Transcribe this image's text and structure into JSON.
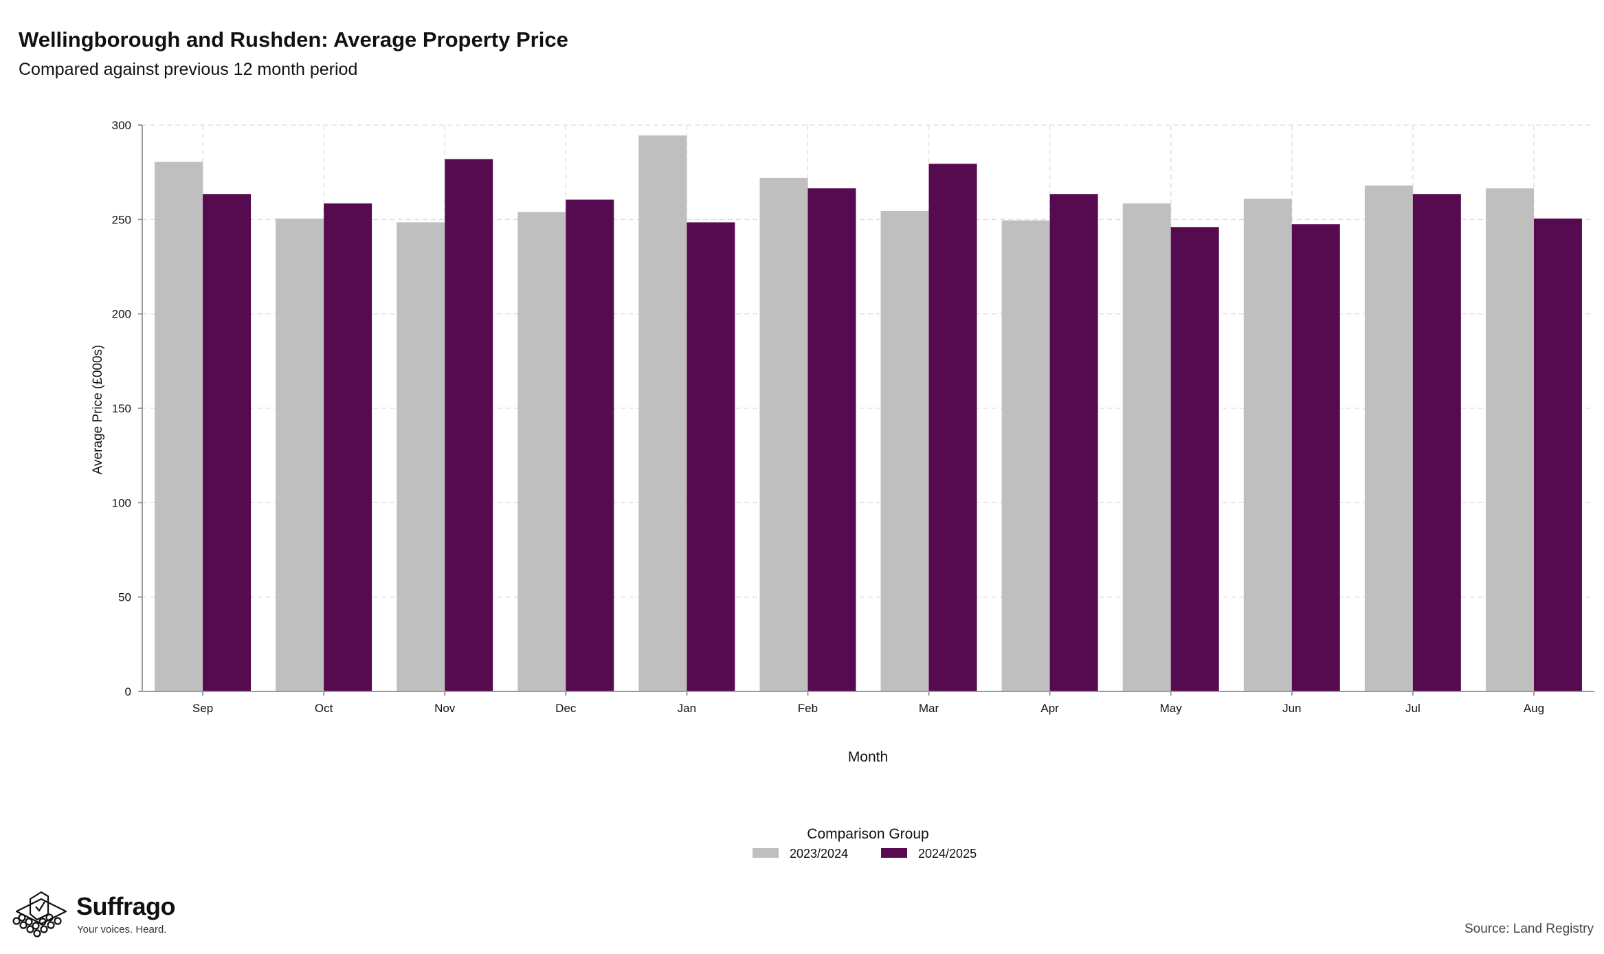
{
  "title": "Wellingborough and Rushden: Average Property Price",
  "subtitle": "Compared against previous 12 month period",
  "source": "Source: Land Registry",
  "brand": {
    "name": "Suffrago",
    "tagline": "Your voices. Heard.",
    "logo_icon": "ballot-box-icon"
  },
  "colors": {
    "series_2023_2024": "#bfbfbf",
    "series_2024_2025": "#560b50",
    "grid": "#dddddd",
    "axis": "#999999"
  },
  "chart_data": {
    "type": "bar",
    "xlabel": "Month",
    "ylabel": "Average Price (£000s)",
    "ylim": [
      0,
      300
    ],
    "yticks": [
      0,
      50,
      100,
      150,
      200,
      250,
      300
    ],
    "grid": true,
    "categories": [
      "Sep",
      "Oct",
      "Nov",
      "Dec",
      "Jan",
      "Feb",
      "Mar",
      "Apr",
      "May",
      "Jun",
      "Jul",
      "Aug"
    ],
    "legend_title": "Comparison Group",
    "legend_position": "bottom",
    "series": [
      {
        "name": "2023/2024",
        "color": "#bfbfbf",
        "values": [
          280.5,
          250.5,
          248.5,
          254,
          294.5,
          272,
          254.5,
          249.5,
          258.5,
          261,
          268,
          266.5
        ]
      },
      {
        "name": "2024/2025",
        "color": "#560b50",
        "values": [
          263.5,
          258.5,
          282,
          260.5,
          248.5,
          266.5,
          279.5,
          263.5,
          246,
          247.5,
          263.5,
          250.5
        ]
      }
    ]
  }
}
